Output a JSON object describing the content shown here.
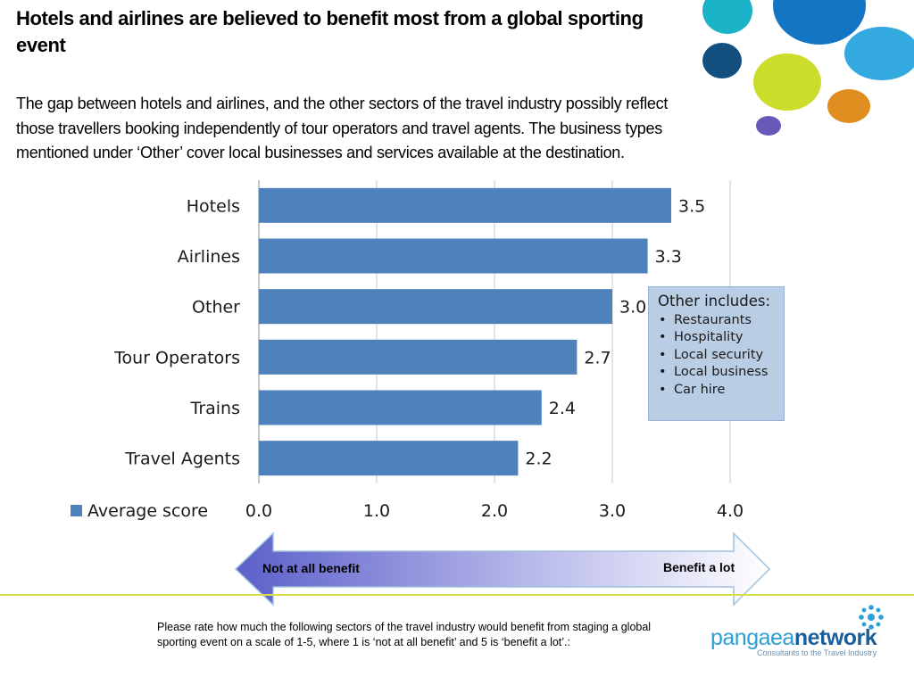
{
  "slide": {
    "title": "Hotels and airlines are believed to benefit most from a global sporting event",
    "body": "The gap between hotels and airlines, and the other sectors of the travel industry possibly reflect those travellers booking independently of tour operators and travel agents. The business types mentioned under ‘Other’ cover local businesses and services available at the destination."
  },
  "chart_data": {
    "type": "bar",
    "orientation": "horizontal",
    "categories": [
      "Hotels",
      "Airlines",
      "Other",
      "Tour Operators",
      "Trains",
      "Travel Agents"
    ],
    "values": [
      3.5,
      3.3,
      3.0,
      2.7,
      2.4,
      2.2
    ],
    "value_labels": [
      "3.5",
      "3.3",
      "3.0",
      "2.7",
      "2.4",
      "2.2"
    ],
    "series": [
      {
        "name": "Average score",
        "values": [
          3.5,
          3.3,
          3.0,
          2.7,
          2.4,
          2.2
        ]
      }
    ],
    "xlim": [
      0,
      4
    ],
    "x_ticks": [
      "0.0",
      "1.0",
      "2.0",
      "3.0",
      "4.0"
    ],
    "grid": "vertical",
    "legend": "bottom-left",
    "bar_color": "#4f81bd"
  },
  "note_box": {
    "title": "Other includes:",
    "items": [
      "Restaurants",
      "Hospitality",
      "Local security",
      "Local business",
      "Car hire"
    ]
  },
  "scale_arrow": {
    "low_label": "Not at all benefit",
    "high_label": "Benefit a lot"
  },
  "footnote": "Please rate how much the following sectors of the travel industry would benefit from staging a global sporting event on a scale of 1-5, where 1 is ‘not at all benefit’ and 5 is ‘benefit a lot’.:",
  "logo": {
    "word_light": "pangaea",
    "word_bold": "network",
    "tagline": "Consultants to the Travel Industry"
  },
  "colors": {
    "accent_line": "#d6de4a",
    "arrow_dark": "#6b6fd0",
    "arrow_light": "#ffffff"
  }
}
